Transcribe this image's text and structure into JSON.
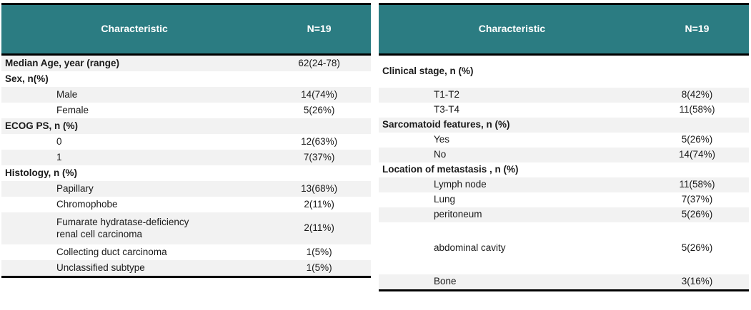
{
  "colors": {
    "header_bg": "#2b7c82",
    "header_text": "#ffffff",
    "row_shade": "#f2f2f2",
    "border": "#000000",
    "text": "#1a1a1a"
  },
  "tables": [
    {
      "title": "Patient characteristics (left)",
      "header": {
        "characteristic": "Characteristic",
        "n": "N=19"
      },
      "rows": [
        {
          "label": "Median Age, year (range)",
          "value": "62(24-78)",
          "bold": true,
          "indent": false,
          "shaded": true
        },
        {
          "label": "Sex, n(%)",
          "value": "",
          "bold": true,
          "indent": false,
          "shaded": false
        },
        {
          "label": "Male",
          "value": "14(74%)",
          "bold": false,
          "indent": true,
          "shaded": true
        },
        {
          "label": "Female",
          "value": "5(26%)",
          "bold": false,
          "indent": true,
          "shaded": false
        },
        {
          "label": "ECOG PS, n (%)",
          "value": "",
          "bold": true,
          "indent": false,
          "shaded": true
        },
        {
          "label": "0",
          "value": "12(63%)",
          "bold": false,
          "indent": true,
          "shaded": false
        },
        {
          "label": "1",
          "value": "7(37%)",
          "bold": false,
          "indent": true,
          "shaded": true
        },
        {
          "label": "Histology, n (%)",
          "value": "",
          "bold": true,
          "indent": false,
          "shaded": false
        },
        {
          "label": "Papillary",
          "value": "13(68%)",
          "bold": false,
          "indent": true,
          "shaded": true
        },
        {
          "label": "Chromophobe",
          "value": "2(11%)",
          "bold": false,
          "indent": true,
          "shaded": false
        },
        {
          "label": "Fumarate hydratase-deficiency\nrenal cell carcinoma",
          "value": "2(11%)",
          "bold": false,
          "indent": true,
          "shaded": true,
          "size": "tall"
        },
        {
          "label": "Collecting duct carcinoma",
          "value": "1(5%)",
          "bold": false,
          "indent": true,
          "shaded": false
        },
        {
          "label": "Unclassified subtype",
          "value": "1(5%)",
          "bold": false,
          "indent": true,
          "shaded": true
        }
      ]
    },
    {
      "title": "Patient characteristics (right)",
      "header": {
        "characteristic": "Characteristic",
        "n": "N=19"
      },
      "rows": [
        {
          "label": "Clinical stage, n (%)",
          "value": "",
          "bold": true,
          "indent": false,
          "shaded": false,
          "size": "tall"
        },
        {
          "label": "T1-T2",
          "value": "8(42%)",
          "bold": false,
          "indent": true,
          "shaded": true
        },
        {
          "label": "T3-T4",
          "value": "11(58%)",
          "bold": false,
          "indent": true,
          "shaded": false
        },
        {
          "label": "Sarcomatoid features, n (%)",
          "value": "",
          "bold": true,
          "indent": false,
          "shaded": true
        },
        {
          "label": "Yes",
          "value": "5(26%)",
          "bold": false,
          "indent": true,
          "shaded": false
        },
        {
          "label": "No",
          "value": "14(74%)",
          "bold": false,
          "indent": true,
          "shaded": true
        },
        {
          "label": "Location of metastasis , n (%)",
          "value": "",
          "bold": true,
          "indent": false,
          "shaded": false
        },
        {
          "label": "Lymph node",
          "value": "11(58%)",
          "bold": false,
          "indent": true,
          "shaded": true
        },
        {
          "label": "Lung",
          "value": "7(37%)",
          "bold": false,
          "indent": true,
          "shaded": false
        },
        {
          "label": "peritoneum",
          "value": "5(26%)",
          "bold": false,
          "indent": true,
          "shaded": true
        },
        {
          "label": "abdominal cavity",
          "value": "5(26%)",
          "bold": false,
          "indent": true,
          "shaded": false,
          "size": "xtall"
        },
        {
          "label": "Bone",
          "value": "3(16%)",
          "bold": false,
          "indent": true,
          "shaded": true
        }
      ]
    }
  ]
}
